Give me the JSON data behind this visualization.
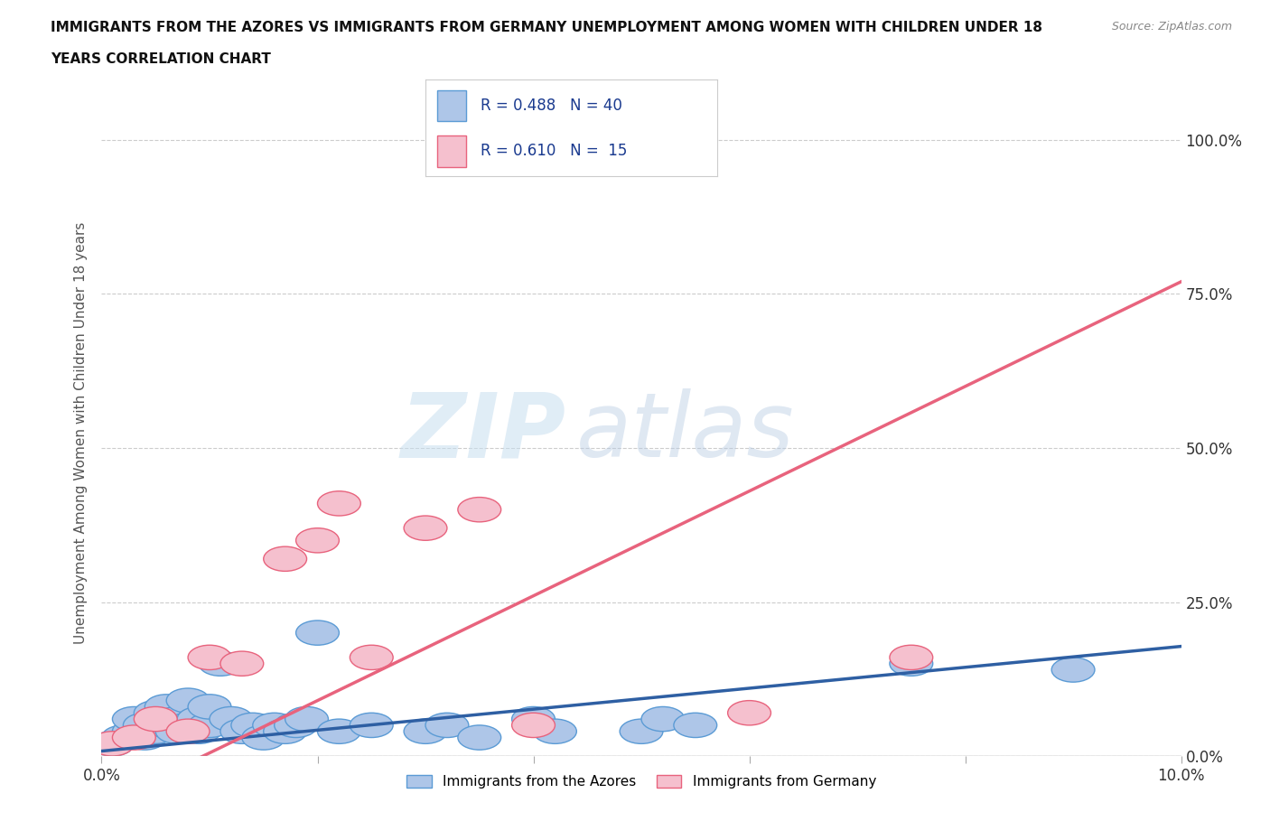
{
  "title_line1": "IMMIGRANTS FROM THE AZORES VS IMMIGRANTS FROM GERMANY UNEMPLOYMENT AMONG WOMEN WITH CHILDREN UNDER 18",
  "title_line2": "YEARS CORRELATION CHART",
  "source": "Source: ZipAtlas.com",
  "ylabel": "Unemployment Among Women with Children Under 18 years",
  "xlim": [
    0.0,
    0.1
  ],
  "ylim": [
    0.0,
    1.05
  ],
  "yticks": [
    0.0,
    0.25,
    0.5,
    0.75,
    1.0
  ],
  "ytick_labels": [
    "0.0%",
    "25.0%",
    "50.0%",
    "75.0%",
    "100.0%"
  ],
  "xticks": [
    0.0,
    0.02,
    0.04,
    0.06,
    0.08,
    0.1
  ],
  "xtick_labels": [
    "0.0%",
    "",
    "",
    "",
    "",
    "10.0%"
  ],
  "background_color": "#ffffff",
  "watermark_zip": "ZIP",
  "watermark_atlas": "atlas",
  "azores_color": "#aec6e8",
  "azores_edge_color": "#5b9bd5",
  "germany_color": "#f5c0ce",
  "germany_edge_color": "#e8637d",
  "azores_line_color": "#2e5fa3",
  "germany_line_color": "#e8637d",
  "grid_color": "#cccccc",
  "R_azores": 0.488,
  "N_azores": 40,
  "R_germany": 0.61,
  "N_germany": 15,
  "azores_x": [
    0.001,
    0.002,
    0.003,
    0.003,
    0.004,
    0.004,
    0.005,
    0.005,
    0.006,
    0.006,
    0.007,
    0.007,
    0.008,
    0.008,
    0.009,
    0.009,
    0.01,
    0.01,
    0.011,
    0.012,
    0.013,
    0.014,
    0.015,
    0.016,
    0.017,
    0.018,
    0.019,
    0.02,
    0.022,
    0.025,
    0.03,
    0.032,
    0.035,
    0.04,
    0.042,
    0.05,
    0.052,
    0.055,
    0.075,
    0.09
  ],
  "azores_y": [
    0.02,
    0.03,
    0.04,
    0.06,
    0.03,
    0.05,
    0.04,
    0.07,
    0.05,
    0.08,
    0.04,
    0.06,
    0.05,
    0.09,
    0.04,
    0.06,
    0.05,
    0.08,
    0.15,
    0.06,
    0.04,
    0.05,
    0.03,
    0.05,
    0.04,
    0.05,
    0.06,
    0.2,
    0.04,
    0.05,
    0.04,
    0.05,
    0.03,
    0.06,
    0.04,
    0.04,
    0.06,
    0.05,
    0.15,
    0.14
  ],
  "germany_x": [
    0.001,
    0.003,
    0.005,
    0.008,
    0.01,
    0.013,
    0.017,
    0.02,
    0.022,
    0.025,
    0.03,
    0.035,
    0.04,
    0.06,
    0.075
  ],
  "germany_y": [
    0.02,
    0.03,
    0.06,
    0.04,
    0.16,
    0.15,
    0.32,
    0.35,
    0.41,
    0.16,
    0.37,
    0.4,
    0.05,
    0.07,
    0.16
  ]
}
